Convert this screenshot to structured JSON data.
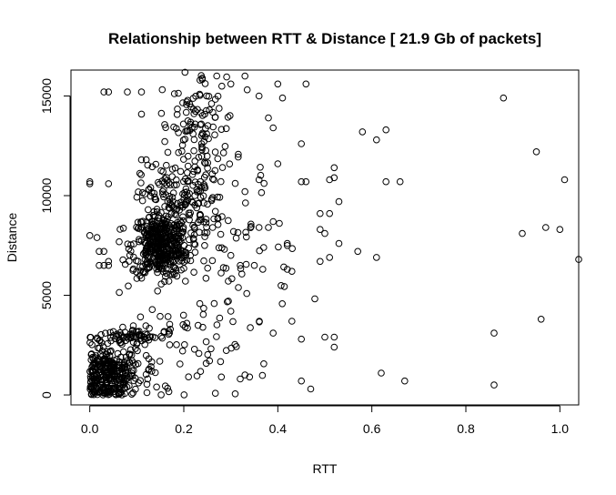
{
  "chart_data": {
    "type": "scatter",
    "title": "Relationship between RTT & Distance [ 21.9 Gb of packets]",
    "xlabel": "RTT",
    "ylabel": "Distance",
    "xlim": [
      -0.04,
      1.04
    ],
    "ylim": [
      -500,
      16300
    ],
    "xticks": [
      0.0,
      0.2,
      0.4,
      0.6,
      0.8,
      1.0
    ],
    "xtick_labels": [
      "0.0",
      "0.2",
      "0.4",
      "0.6",
      "0.8",
      "1.0"
    ],
    "yticks": [
      0,
      5000,
      10000,
      15000
    ],
    "ytick_labels": [
      "0",
      "5000",
      "10000",
      "15000"
    ],
    "grid": false,
    "marker": "open-circle",
    "clusters": [
      {
        "x_center": 0.04,
        "y_center": 1000,
        "x_spread": 0.03,
        "y_spread": 700,
        "count": 300
      },
      {
        "x_center": 0.08,
        "y_center": 2900,
        "x_spread": 0.04,
        "y_spread": 150,
        "count": 60
      },
      {
        "x_center": 0.15,
        "y_center": 7500,
        "x_spread": 0.03,
        "y_spread": 800,
        "count": 420
      },
      {
        "x_center": 0.19,
        "y_center": 9800,
        "x_spread": 0.04,
        "y_spread": 900,
        "count": 120
      },
      {
        "x_center": 0.23,
        "y_center": 13500,
        "x_spread": 0.04,
        "y_spread": 1500,
        "count": 120
      },
      {
        "x_center": 0.27,
        "y_center": 7500,
        "x_spread": 0.08,
        "y_spread": 2500,
        "count": 120
      },
      {
        "x_center": 0.15,
        "y_center": 2000,
        "x_spread": 0.08,
        "y_spread": 1400,
        "count": 80
      }
    ],
    "points": [
      {
        "x": 0.0,
        "y": 10700
      },
      {
        "x": 0.0,
        "y": 10600
      },
      {
        "x": 0.0,
        "y": 8000
      },
      {
        "x": 0.02,
        "y": 7200
      },
      {
        "x": 0.03,
        "y": 7200
      },
      {
        "x": 0.02,
        "y": 6500
      },
      {
        "x": 0.03,
        "y": 6500
      },
      {
        "x": 0.04,
        "y": 6700
      },
      {
        "x": 0.04,
        "y": 6500
      },
      {
        "x": 0.04,
        "y": 10600
      },
      {
        "x": 0.03,
        "y": 15200
      },
      {
        "x": 0.04,
        "y": 15200
      },
      {
        "x": 0.08,
        "y": 15200
      },
      {
        "x": 0.11,
        "y": 15200
      },
      {
        "x": 0.11,
        "y": 11800
      },
      {
        "x": 0.12,
        "y": 11800
      },
      {
        "x": 0.3,
        "y": 15600
      },
      {
        "x": 0.33,
        "y": 16000
      },
      {
        "x": 0.36,
        "y": 15000
      },
      {
        "x": 0.4,
        "y": 15600
      },
      {
        "x": 0.41,
        "y": 14900
      },
      {
        "x": 0.46,
        "y": 15600
      },
      {
        "x": 0.38,
        "y": 13900
      },
      {
        "x": 0.39,
        "y": 13400
      },
      {
        "x": 0.45,
        "y": 12600
      },
      {
        "x": 0.4,
        "y": 11600
      },
      {
        "x": 0.45,
        "y": 10700
      },
      {
        "x": 0.46,
        "y": 10700
      },
      {
        "x": 0.51,
        "y": 10800
      },
      {
        "x": 0.52,
        "y": 11400
      },
      {
        "x": 0.52,
        "y": 10900
      },
      {
        "x": 0.53,
        "y": 9700
      },
      {
        "x": 0.49,
        "y": 9100
      },
      {
        "x": 0.51,
        "y": 9100
      },
      {
        "x": 0.49,
        "y": 8300
      },
      {
        "x": 0.5,
        "y": 8100
      },
      {
        "x": 0.42,
        "y": 7600
      },
      {
        "x": 0.42,
        "y": 7500
      },
      {
        "x": 0.42,
        "y": 6300
      },
      {
        "x": 0.43,
        "y": 6200
      },
      {
        "x": 0.49,
        "y": 6700
      },
      {
        "x": 0.51,
        "y": 6900
      },
      {
        "x": 0.53,
        "y": 7600
      },
      {
        "x": 0.57,
        "y": 7200
      },
      {
        "x": 0.58,
        "y": 13200
      },
      {
        "x": 0.61,
        "y": 12800
      },
      {
        "x": 0.63,
        "y": 13300
      },
      {
        "x": 0.63,
        "y": 10700
      },
      {
        "x": 0.66,
        "y": 10700
      },
      {
        "x": 0.61,
        "y": 6900
      },
      {
        "x": 0.88,
        "y": 14900
      },
      {
        "x": 0.95,
        "y": 12200
      },
      {
        "x": 1.01,
        "y": 10800
      },
      {
        "x": 0.92,
        "y": 8100
      },
      {
        "x": 0.97,
        "y": 8400
      },
      {
        "x": 1.0,
        "y": 8300
      },
      {
        "x": 1.04,
        "y": 6800
      },
      {
        "x": 0.96,
        "y": 3800
      },
      {
        "x": 0.86,
        "y": 3100
      },
      {
        "x": 0.86,
        "y": 500
      },
      {
        "x": 0.62,
        "y": 1100
      },
      {
        "x": 0.67,
        "y": 700
      },
      {
        "x": 0.5,
        "y": 2900
      },
      {
        "x": 0.52,
        "y": 2900
      },
      {
        "x": 0.52,
        "y": 2400
      },
      {
        "x": 0.45,
        "y": 2800
      },
      {
        "x": 0.43,
        "y": 3700
      },
      {
        "x": 0.39,
        "y": 3100
      },
      {
        "x": 0.45,
        "y": 700
      },
      {
        "x": 0.47,
        "y": 300
      },
      {
        "x": 0.3,
        "y": 4200
      },
      {
        "x": 0.33,
        "y": 1000
      },
      {
        "x": 0.32,
        "y": 800
      },
      {
        "x": 0.34,
        "y": 900
      },
      {
        "x": 0.28,
        "y": 900
      },
      {
        "x": 0.3,
        "y": 7000
      },
      {
        "x": 0.32,
        "y": 6500
      },
      {
        "x": 0.35,
        "y": 6500
      },
      {
        "x": 0.36,
        "y": 8400
      },
      {
        "x": 0.38,
        "y": 8400
      },
      {
        "x": 0.39,
        "y": 8700
      },
      {
        "x": 0.37,
        "y": 7400
      },
      {
        "x": 0.33,
        "y": 10200
      },
      {
        "x": 0.36,
        "y": 10800
      }
    ]
  }
}
